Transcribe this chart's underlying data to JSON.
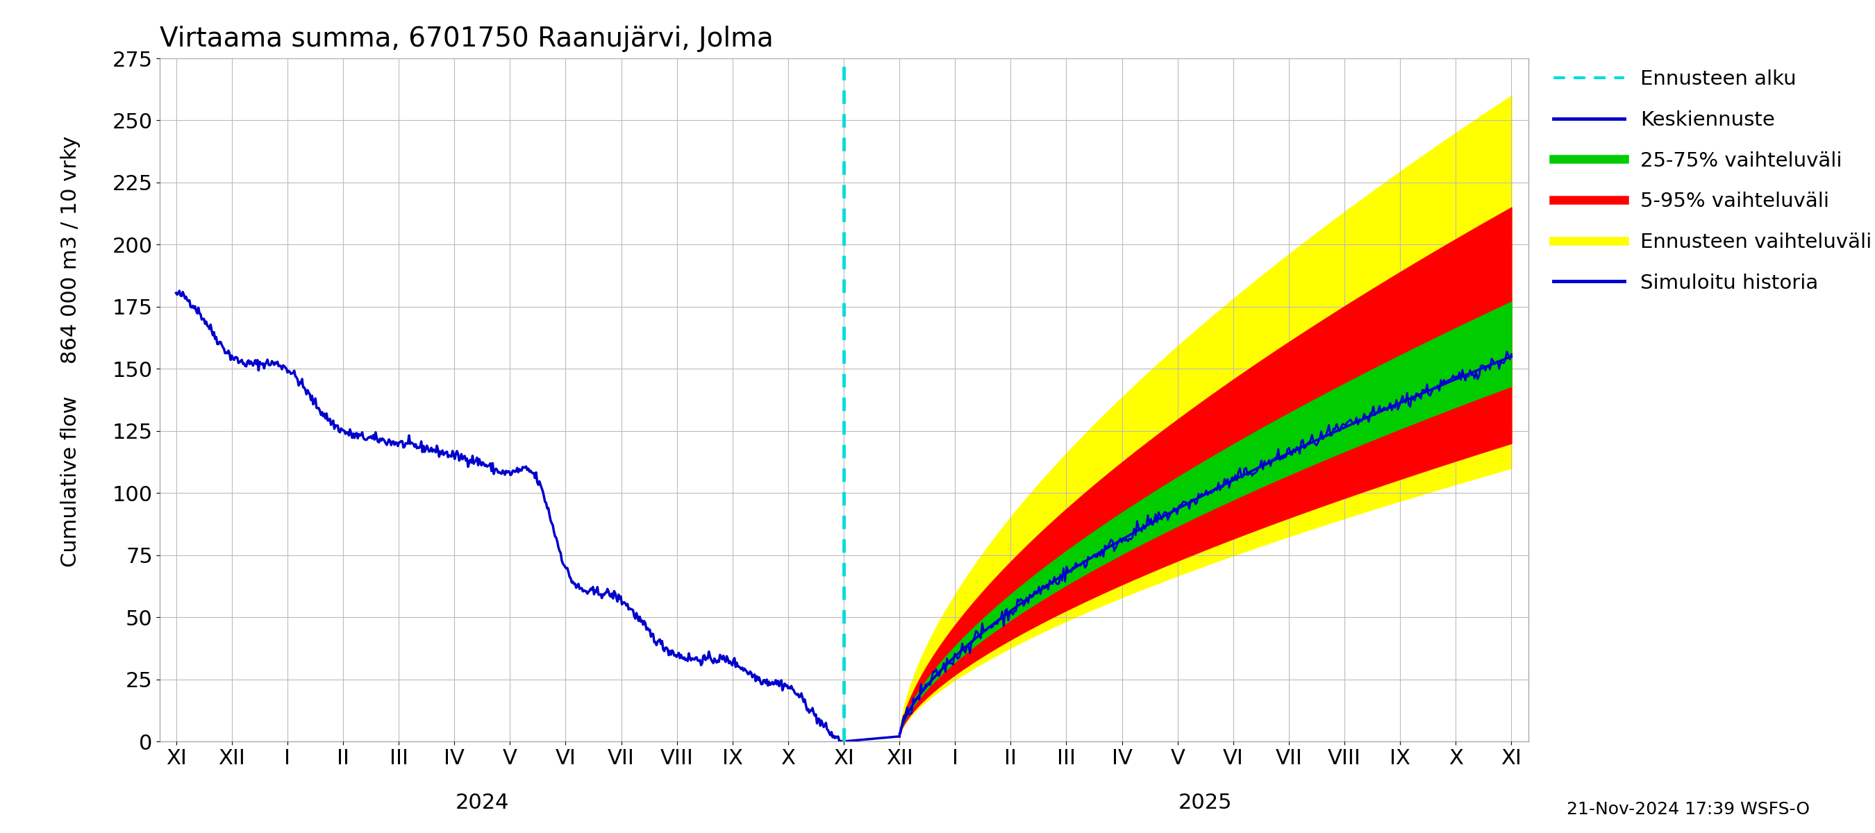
{
  "title": "Virtaama summa, 6701750 Raanujärvi, Jolma",
  "ylabel_top": "864 000 m3 / 10 vrky",
  "ylabel_bottom": "Cumulative flow",
  "ylim": [
    0,
    275
  ],
  "yticks": [
    0,
    25,
    50,
    75,
    100,
    125,
    150,
    175,
    200,
    225,
    250,
    275
  ],
  "tick_labels": [
    "XI",
    "XII",
    "I",
    "II",
    "III",
    "IV",
    "V",
    "VI",
    "VII",
    "VIII",
    "IX",
    "X",
    "XI",
    "XII",
    "I",
    "II",
    "III",
    "IV",
    "V",
    "VI",
    "VII",
    "VIII",
    "IX",
    "X",
    "XI"
  ],
  "year_label_2024": "2024",
  "year_label_2025": "2025",
  "timestamp": "21-Nov-2024 17:39 WSFS-O",
  "background_color": "#ffffff",
  "grid_color": "#bbbbbb",
  "forecast_line_color": "#00dddd",
  "hist_color": "#0000cc",
  "median_color": "#0000cc",
  "band_25_75_color": "#00cc00",
  "band_5_95_color": "#ff0000",
  "band_full_color": "#ffff00"
}
